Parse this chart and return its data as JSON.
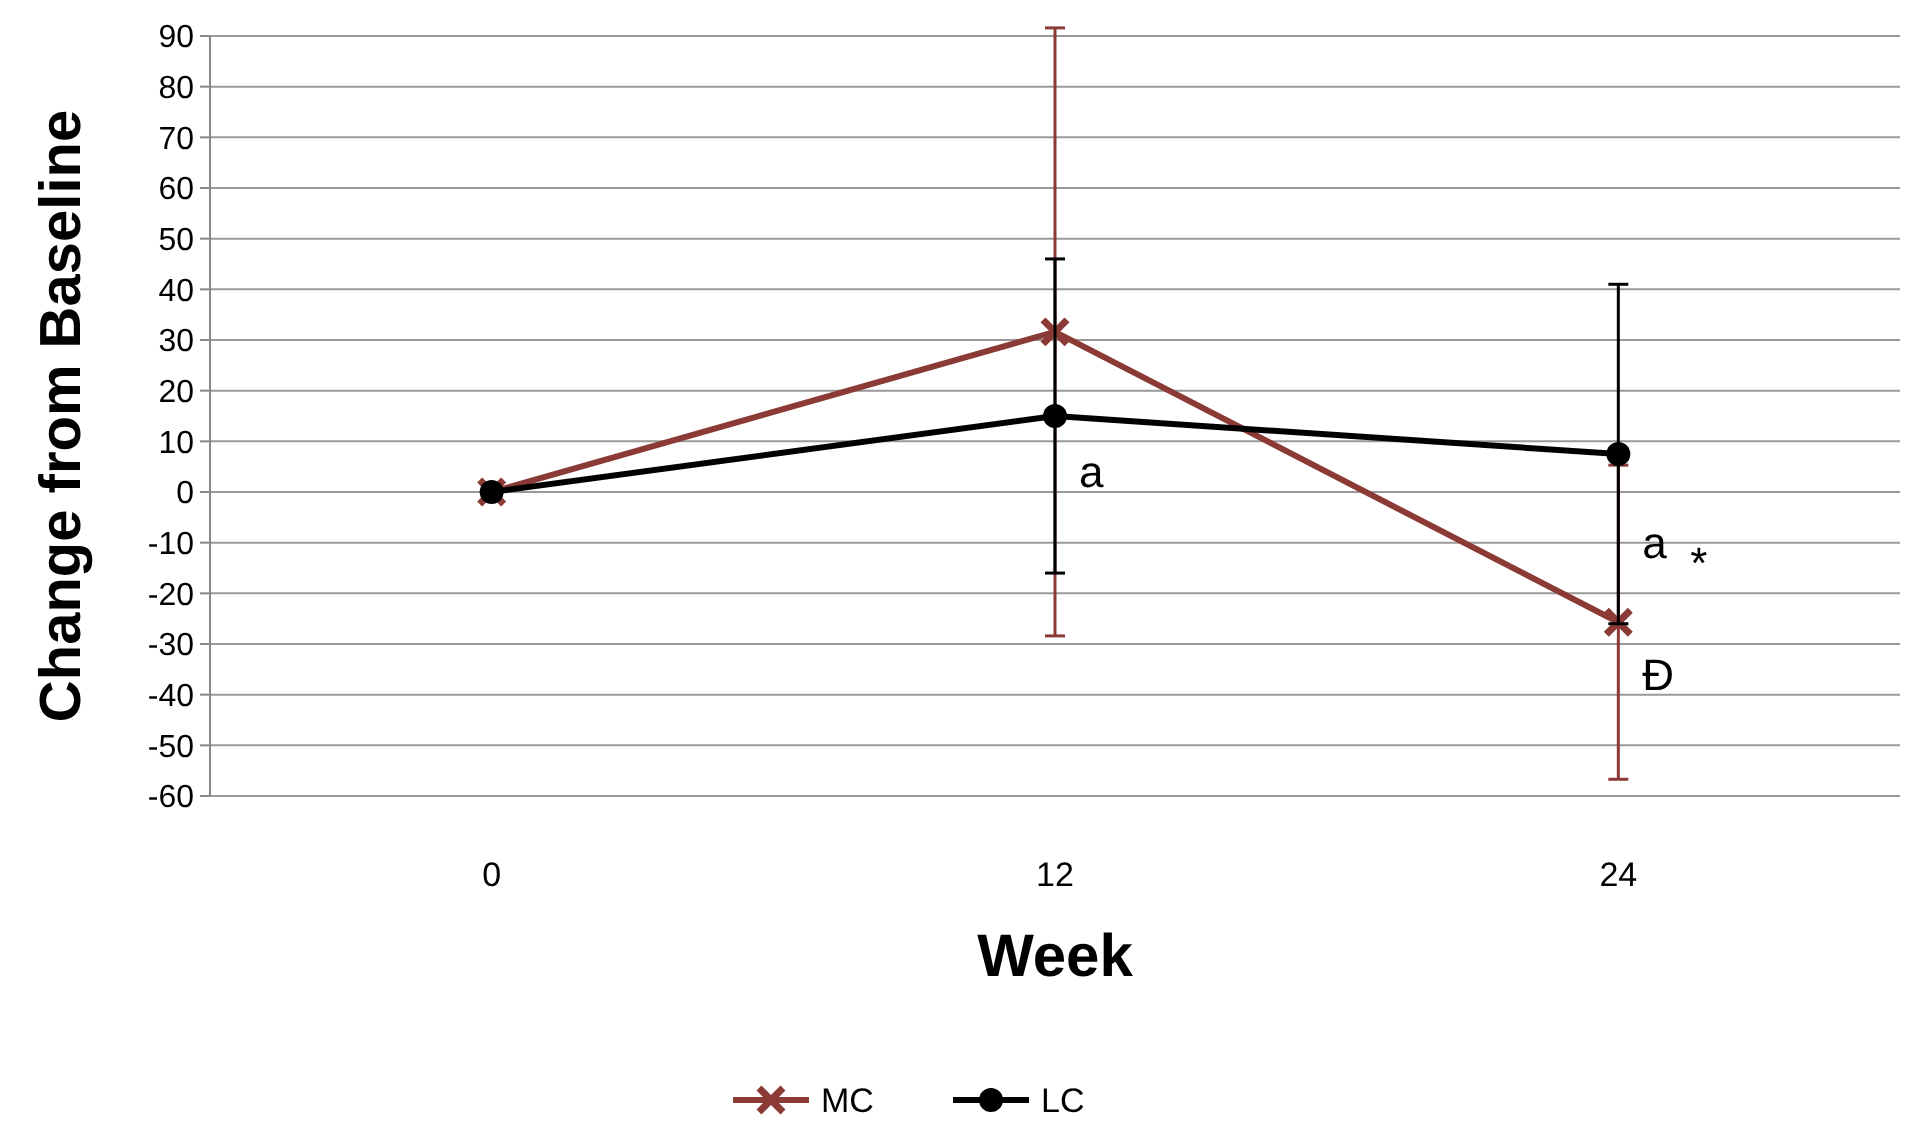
{
  "chart_data": {
    "type": "line",
    "xlabel": "Week",
    "ylabel": "Change from Baseline",
    "categories": [
      "0",
      "12",
      "24"
    ],
    "series": [
      {
        "name": "MC",
        "color": "#8b3a35",
        "marker": "cross",
        "values": [
          0,
          31.6,
          -25.7
        ],
        "errors": [
          null,
          60,
          31
        ]
      },
      {
        "name": "LC",
        "color": "#000000",
        "marker": "circle",
        "values": [
          0,
          15,
          7.5
        ],
        "errors": [
          null,
          31,
          33.5
        ]
      }
    ],
    "ylim": [
      -60,
      90
    ],
    "yticks": [
      -60,
      -50,
      -40,
      -30,
      -20,
      -10,
      0,
      10,
      20,
      30,
      40,
      50,
      60,
      70,
      80,
      90
    ],
    "grid": "y",
    "legend": "bottom",
    "line_style": "solid",
    "annotations": [
      {
        "text": "a",
        "x": "12",
        "y": 4
      },
      {
        "text": "a",
        "x": "24",
        "y": -10
      },
      {
        "text": "*",
        "x": "24",
        "y": -14
      },
      {
        "text": "Đ",
        "x": "24",
        "y": -36
      }
    ]
  }
}
